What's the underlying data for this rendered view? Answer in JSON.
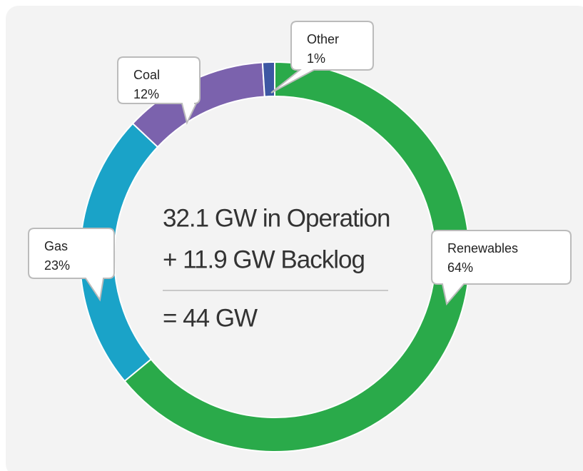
{
  "chart_data": {
    "type": "pie",
    "donut": true,
    "categories": [
      "Renewables",
      "Gas",
      "Coal",
      "Other"
    ],
    "values": [
      64,
      23,
      12,
      1
    ],
    "value_labels": [
      "64%",
      "23%",
      "12%",
      "1%"
    ],
    "colors": [
      "#2aaa4a",
      "#1aa3c8",
      "#7b62ad",
      "#3d57a3"
    ],
    "annotations": [
      "32.1 GW in Operation",
      "+ 11.9 GW Backlog",
      "= 44 GW"
    ]
  }
}
